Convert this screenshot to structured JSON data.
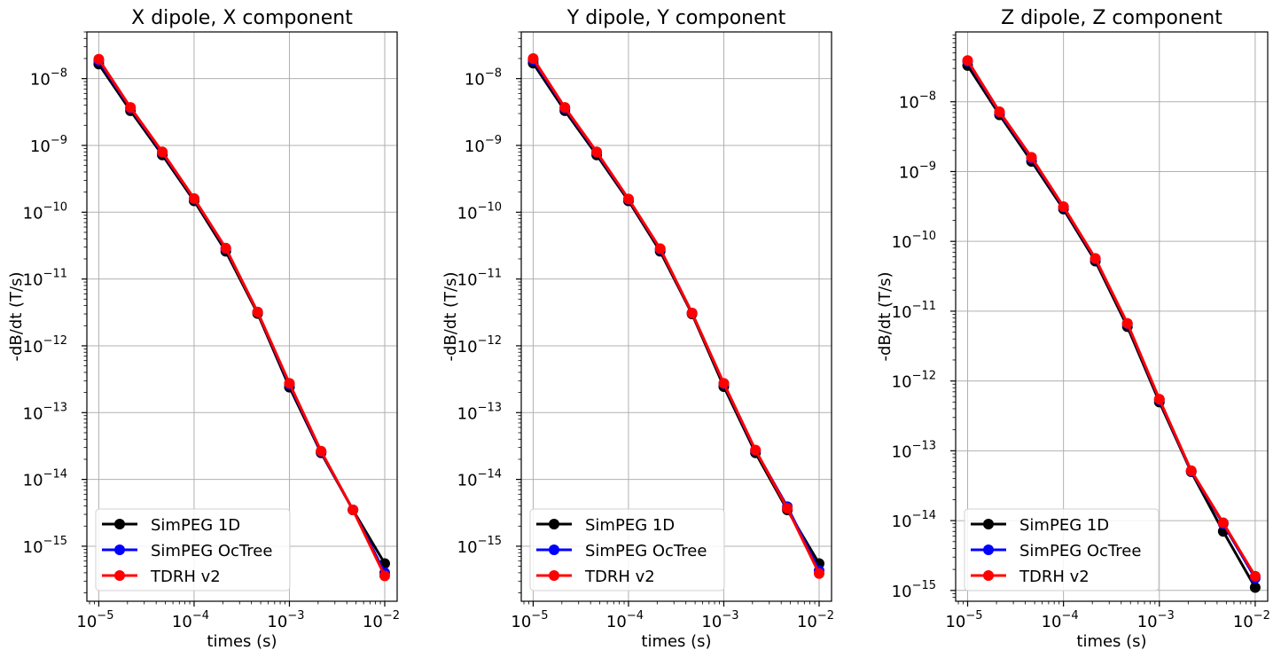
{
  "chart_data": [
    {
      "type": "line",
      "title": "X dipole, X component",
      "xlabel": "times (s)",
      "ylabel": "-dB/dt (T/s)",
      "xscale": "log",
      "yscale": "log",
      "xlim": [
        7.5e-06,
        0.0135
      ],
      "ylim": [
        1.5e-16,
        5e-08
      ],
      "xticks": [
        -5,
        -4,
        -3,
        -2
      ],
      "yticks": [
        -15,
        -14,
        -13,
        -12,
        -11,
        -10,
        -9,
        -8
      ],
      "grid": true,
      "legend_position": "lower-left",
      "x": [
        1e-05,
        2.15e-05,
        4.64e-05,
        0.0001,
        0.000215,
        0.000464,
        0.001,
        0.00215,
        0.00464,
        0.01
      ],
      "series": [
        {
          "name": "SimPEG 1D",
          "color": "#000000",
          "values": [
            1.65e-08,
            3.3e-09,
            7.2e-10,
            1.48e-10,
            2.6e-11,
            3.05e-12,
            2.4e-13,
            2.5e-14,
            3.5e-15,
            5.5e-16
          ]
        },
        {
          "name": "SimPEG OcTree",
          "color": "#0000ff",
          "values": [
            1.85e-08,
            3.6e-09,
            7.8e-10,
            1.58e-10,
            2.85e-11,
            3.2e-12,
            2.65e-13,
            2.6e-14,
            3.5e-15,
            4e-16
          ]
        },
        {
          "name": "TDRH v2",
          "color": "#ff0000",
          "values": [
            1.95e-08,
            3.7e-09,
            8e-10,
            1.6e-10,
            2.9e-11,
            3.2e-12,
            2.75e-13,
            2.65e-14,
            3.5e-15,
            3.6e-16
          ]
        }
      ]
    },
    {
      "type": "line",
      "title": "Y dipole, Y component",
      "xlabel": "times (s)",
      "ylabel": "-dB/dt (T/s)",
      "xscale": "log",
      "yscale": "log",
      "xlim": [
        7.5e-06,
        0.0135
      ],
      "ylim": [
        1.5e-16,
        5e-08
      ],
      "xticks": [
        -5,
        -4,
        -3,
        -2
      ],
      "yticks": [
        -15,
        -14,
        -13,
        -12,
        -11,
        -10,
        -9,
        -8
      ],
      "grid": true,
      "legend_position": "lower-left",
      "x": [
        1e-05,
        2.15e-05,
        4.64e-05,
        0.0001,
        0.000215,
        0.000464,
        0.001,
        0.00215,
        0.00464,
        0.01
      ],
      "series": [
        {
          "name": "SimPEG 1D",
          "color": "#000000",
          "values": [
            1.7e-08,
            3.3e-09,
            7.2e-10,
            1.48e-10,
            2.6e-11,
            3e-12,
            2.45e-13,
            2.5e-14,
            3.5e-15,
            5.5e-16
          ]
        },
        {
          "name": "SimPEG OcTree",
          "color": "#0000ff",
          "values": [
            1.9e-08,
            3.6e-09,
            7.8e-10,
            1.56e-10,
            2.8e-11,
            3.1e-12,
            2.7e-13,
            2.7e-14,
            3.9e-15,
            4.3e-16
          ]
        },
        {
          "name": "TDRH v2",
          "color": "#ff0000",
          "values": [
            2e-08,
            3.7e-09,
            8e-10,
            1.58e-10,
            2.85e-11,
            3.1e-12,
            2.75e-13,
            2.75e-14,
            3.7e-15,
            3.9e-16
          ]
        }
      ]
    },
    {
      "type": "line",
      "title": "Z dipole, Z component",
      "xlabel": "times (s)",
      "ylabel": "-dB/dt (T/s)",
      "xscale": "log",
      "yscale": "log",
      "xlim": [
        7.5e-06,
        0.0135
      ],
      "ylim": [
        7e-16,
        1e-07
      ],
      "xticks": [
        -5,
        -4,
        -3,
        -2
      ],
      "yticks": [
        -15,
        -14,
        -13,
        -12,
        -11,
        -10,
        -9,
        -8
      ],
      "grid": true,
      "legend_position": "lower-left",
      "x": [
        1e-05,
        2.15e-05,
        4.64e-05,
        0.0001,
        0.000215,
        0.000464,
        0.001,
        0.00215,
        0.00464,
        0.01
      ],
      "series": [
        {
          "name": "SimPEG 1D",
          "color": "#000000",
          "values": [
            3.3e-08,
            6.5e-09,
            1.4e-09,
            2.9e-10,
            5.2e-11,
            6e-12,
            5e-13,
            5e-14,
            7e-15,
            1.1e-15
          ]
        },
        {
          "name": "SimPEG OcTree",
          "color": "#0000ff",
          "values": [
            3.8e-08,
            7e-09,
            1.55e-09,
            3.1e-10,
            5.6e-11,
            6.6e-12,
            5.4e-13,
            5.1e-14,
            9e-15,
            1.5e-15
          ]
        },
        {
          "name": "TDRH v2",
          "color": "#ff0000",
          "values": [
            3.9e-08,
            7.2e-09,
            1.6e-09,
            3.15e-10,
            5.7e-11,
            6.7e-12,
            5.5e-13,
            5.2e-14,
            9.3e-15,
            1.6e-15
          ]
        }
      ]
    }
  ]
}
